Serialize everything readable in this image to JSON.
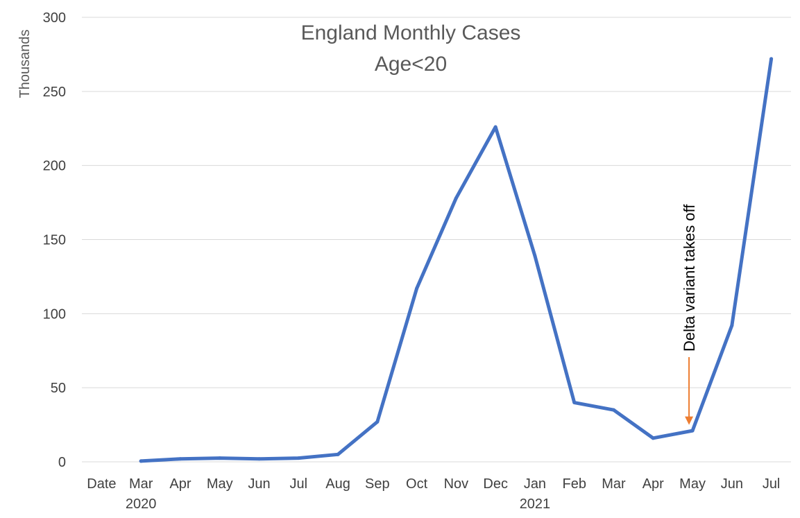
{
  "chart_data": {
    "type": "line",
    "title": [
      "England Monthly Cases",
      "Age<20"
    ],
    "ylabel": "Thousands",
    "xlabel": "",
    "ylim": [
      0,
      300
    ],
    "yticks": [
      0,
      50,
      100,
      150,
      200,
      250,
      300
    ],
    "grid": true,
    "categories": [
      "Date",
      "Mar",
      "Apr",
      "May",
      "Jun",
      "Jul",
      "Aug",
      "Sep",
      "Oct",
      "Nov",
      "Dec",
      "Jan",
      "Feb",
      "Mar",
      "Apr",
      "May",
      "Jun",
      "Jul"
    ],
    "year_labels": [
      {
        "text": "2020",
        "category_index": 1
      },
      {
        "text": "2021",
        "category_index": 11
      }
    ],
    "series": [
      {
        "color": "#4472c4",
        "values": [
          null,
          0.5,
          2,
          2.5,
          2,
          2.5,
          5,
          27,
          117,
          178,
          226,
          139,
          40,
          35,
          16,
          21,
          92,
          272
        ]
      }
    ],
    "annotations": [
      {
        "text": "Delta variant takes off",
        "category_index": 15,
        "arrow_color": "#ed7d31",
        "arrow_to_value": 25
      }
    ]
  }
}
